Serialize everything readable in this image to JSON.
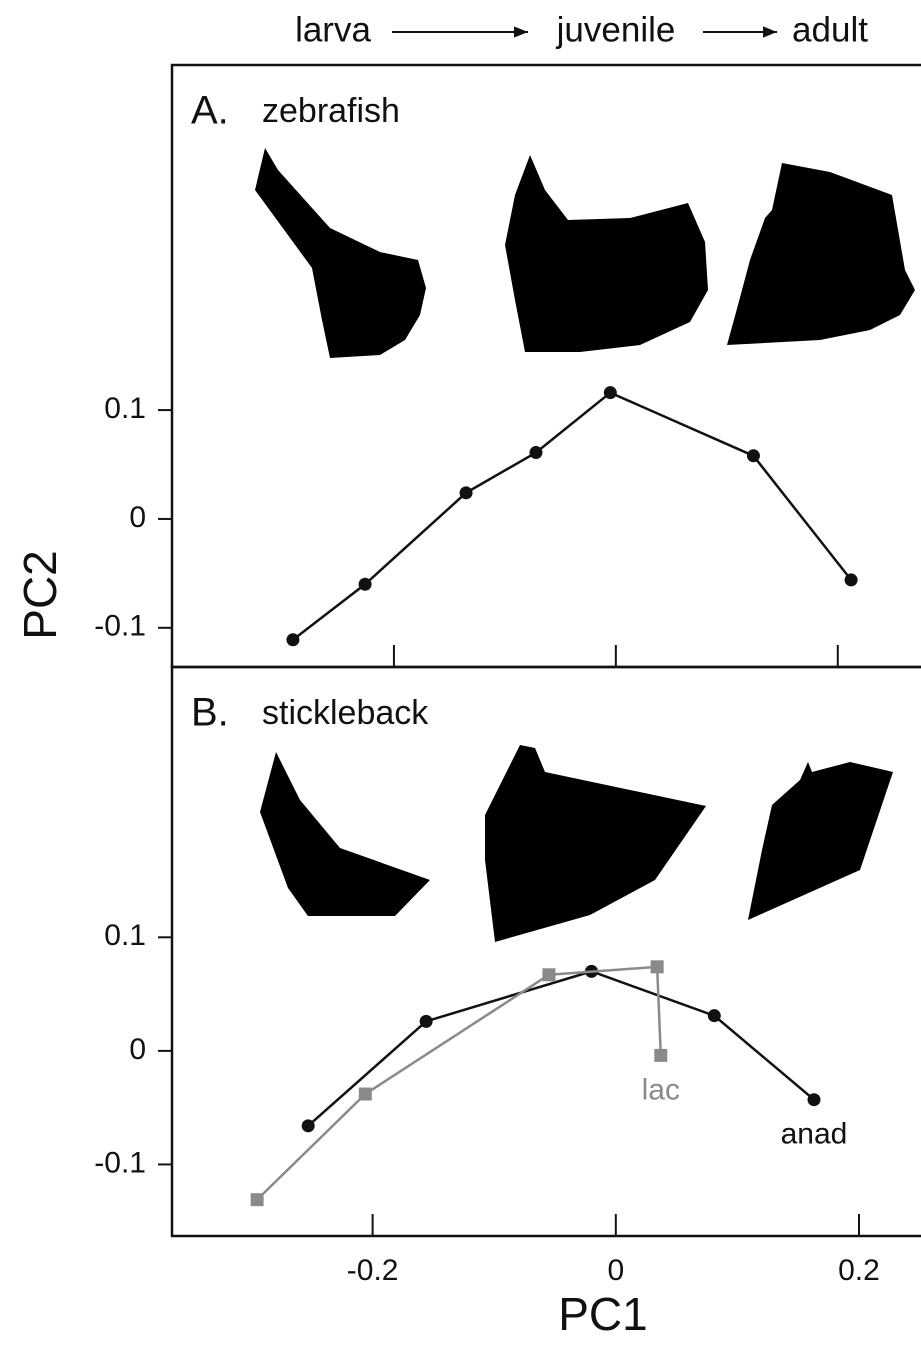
{
  "header": {
    "stages": [
      "larva",
      "juvenile",
      "adult"
    ]
  },
  "chart_data": [
    {
      "type": "line",
      "panel_label": "A.",
      "title": "zebrafish",
      "ylabel": "PC2",
      "xlim": [
        -0.4,
        0.275
      ],
      "xticks": [
        -0.2,
        0,
        0.2
      ],
      "xticklabels": false,
      "ylim": [
        -0.136,
        0.417
      ],
      "yticks": [
        -0.1,
        0,
        0.1
      ],
      "series": [
        {
          "color": "#111111",
          "marker": "circle",
          "x": [
            -0.291,
            -0.226,
            -0.135,
            -0.072,
            -0.005,
            0.124,
            0.212
          ],
          "values": [
            -0.111,
            -0.06,
            0.024,
            0.061,
            0.116,
            0.058,
            -0.056
          ]
        }
      ]
    },
    {
      "type": "line",
      "panel_label": "B.",
      "title": "stickleback",
      "xlabel": "PC1",
      "xlim": [
        -0.365,
        0.251
      ],
      "xticks": [
        -0.2,
        0,
        0.2
      ],
      "xticklabels": true,
      "ylim": [
        -0.163,
        0.338
      ],
      "yticks": [
        -0.1,
        0,
        0.1
      ],
      "series": [
        {
          "name": "anad",
          "color": "#111111",
          "marker": "circle",
          "x": [
            -0.253,
            -0.156,
            -0.02,
            0.081,
            0.163
          ],
          "values": [
            -0.066,
            0.026,
            0.07,
            0.031,
            -0.043
          ]
        },
        {
          "name": "lac",
          "color": "#8a8a8a",
          "marker": "square",
          "x": [
            -0.295,
            -0.206,
            -0.055,
            0.034,
            0.037
          ],
          "values": [
            -0.131,
            -0.038,
            0.067,
            0.074,
            -0.004
          ]
        }
      ]
    }
  ]
}
